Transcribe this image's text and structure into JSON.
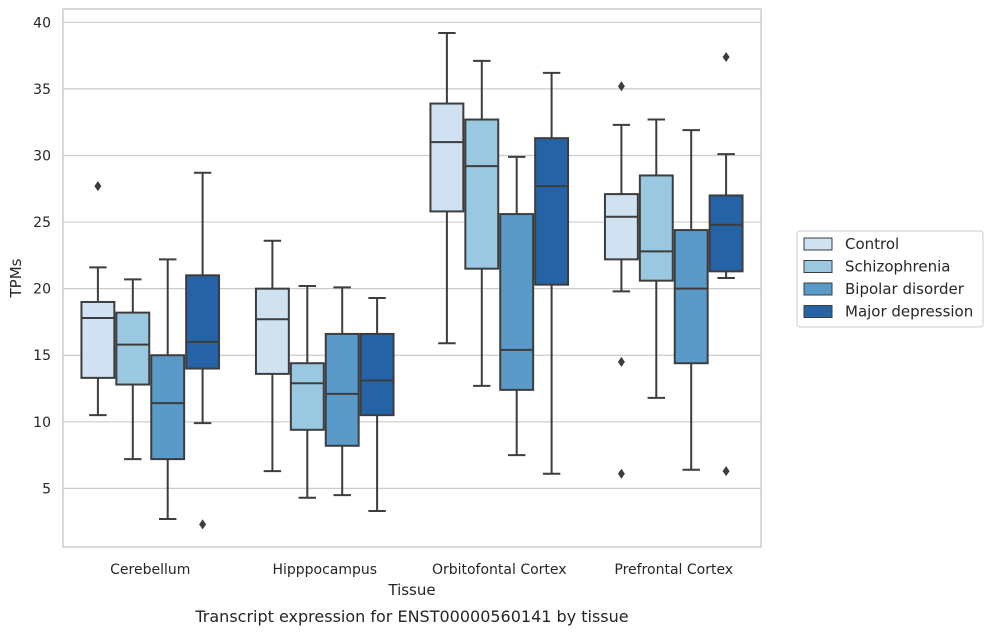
{
  "chart_data": {
    "type": "box",
    "title": "Transcript expression for ENST00000560141 by tissue",
    "xlabel": "Tissue",
    "ylabel": "TPMs",
    "ylim": [
      0.6,
      41
    ],
    "yticks": [
      5,
      10,
      15,
      20,
      25,
      30,
      35,
      40
    ],
    "grid": "horizontal",
    "legend_position": "right",
    "categories": [
      "Cerebellum",
      "Hipppocampus",
      "Orbitofontal Cortex",
      "Prefrontal Cortex"
    ],
    "series": [
      {
        "name": "Control",
        "color": "#d0e1f1",
        "boxes": [
          {
            "whisker_low": 10.5,
            "q1": 13.3,
            "median": 17.8,
            "q3": 19.0,
            "whisker_high": 21.6,
            "outliers": [
              27.7
            ]
          },
          {
            "whisker_low": 6.3,
            "q1": 13.6,
            "median": 17.7,
            "q3": 20.0,
            "whisker_high": 23.6,
            "outliers": []
          },
          {
            "whisker_low": 15.9,
            "q1": 25.8,
            "median": 31.0,
            "q3": 33.9,
            "whisker_high": 39.2,
            "outliers": []
          },
          {
            "whisker_low": 19.8,
            "q1": 22.2,
            "median": 25.4,
            "q3": 27.1,
            "whisker_high": 32.3,
            "outliers": [
              35.2,
              14.5,
              6.1
            ]
          }
        ]
      },
      {
        "name": "Schizophrenia",
        "color": "#9ac8e0",
        "boxes": [
          {
            "whisker_low": 7.2,
            "q1": 12.8,
            "median": 15.8,
            "q3": 18.2,
            "whisker_high": 20.7,
            "outliers": []
          },
          {
            "whisker_low": 4.3,
            "q1": 9.4,
            "median": 12.9,
            "q3": 14.4,
            "whisker_high": 20.2,
            "outliers": []
          },
          {
            "whisker_low": 12.7,
            "q1": 21.5,
            "median": 29.2,
            "q3": 32.7,
            "whisker_high": 37.1,
            "outliers": []
          },
          {
            "whisker_low": 11.8,
            "q1": 20.6,
            "median": 22.8,
            "q3": 28.5,
            "whisker_high": 32.7,
            "outliers": []
          }
        ]
      },
      {
        "name": "Bipolar disorder",
        "color": "#5a9ac8",
        "boxes": [
          {
            "whisker_low": 2.7,
            "q1": 7.2,
            "median": 11.4,
            "q3": 15.0,
            "whisker_high": 22.2,
            "outliers": []
          },
          {
            "whisker_low": 4.5,
            "q1": 8.2,
            "median": 12.1,
            "q3": 16.6,
            "whisker_high": 20.1,
            "outliers": []
          },
          {
            "whisker_low": 7.5,
            "q1": 12.4,
            "median": 15.4,
            "q3": 25.6,
            "whisker_high": 29.9,
            "outliers": []
          },
          {
            "whisker_low": 6.4,
            "q1": 14.4,
            "median": 20.0,
            "q3": 24.4,
            "whisker_high": 31.9,
            "outliers": []
          }
        ]
      },
      {
        "name": "Major depression",
        "color": "#2563a6",
        "boxes": [
          {
            "whisker_low": 9.9,
            "q1": 14.0,
            "median": 16.0,
            "q3": 21.0,
            "whisker_high": 28.7,
            "outliers": [
              2.3
            ]
          },
          {
            "whisker_low": 3.3,
            "q1": 10.5,
            "median": 13.1,
            "q3": 16.6,
            "whisker_high": 19.3,
            "outliers": []
          },
          {
            "whisker_low": 6.1,
            "q1": 20.3,
            "median": 27.7,
            "q3": 31.3,
            "whisker_high": 36.2,
            "outliers": []
          },
          {
            "whisker_low": 20.8,
            "q1": 21.3,
            "median": 24.8,
            "q3": 27.0,
            "whisker_high": 30.1,
            "outliers": [
              37.4,
              6.3
            ]
          }
        ]
      }
    ]
  }
}
